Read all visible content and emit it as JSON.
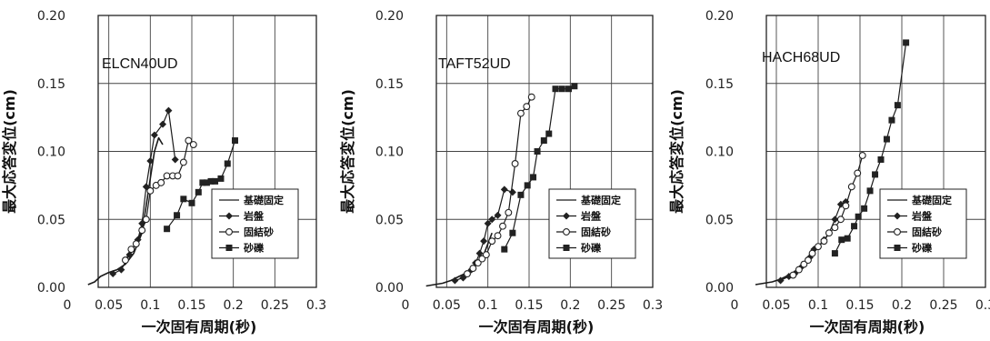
{
  "chart_data": [
    {
      "type": "line",
      "title": "ELCN40UD",
      "xlabel": "一次固有周期(秒)",
      "ylabel": "最大応答変位(cm)",
      "xlim": [
        0,
        0.3
      ],
      "ylim": [
        0,
        0.2
      ],
      "xticks": [
        "0",
        "0.05",
        "0.1",
        "0.15",
        "0.2",
        "0.25",
        "0.3"
      ],
      "yticks": [
        "0.00",
        "0.05",
        "0.10",
        "0.15",
        "0.20"
      ],
      "grid": true,
      "legend_position": "lower-right",
      "series": [
        {
          "name": "基礎固定",
          "marker": "none",
          "x": [
            0.025,
            0.033,
            0.04,
            0.05,
            0.06,
            0.07,
            0.08,
            0.09,
            0.095,
            0.1,
            0.105,
            0.11,
            0.115
          ],
          "y": [
            0.002,
            0.004,
            0.008,
            0.011,
            0.013,
            0.017,
            0.025,
            0.04,
            0.06,
            0.08,
            0.1,
            0.11,
            0.105
          ]
        },
        {
          "name": "岩盤",
          "marker": "diamond",
          "x": [
            0.055,
            0.065,
            0.075,
            0.085,
            0.09,
            0.095,
            0.1,
            0.105,
            0.115,
            0.122,
            0.13
          ],
          "y": [
            0.01,
            0.013,
            0.024,
            0.035,
            0.047,
            0.074,
            0.093,
            0.112,
            0.12,
            0.13,
            0.094
          ]
        },
        {
          "name": "固結砂",
          "marker": "circle",
          "x": [
            0.07,
            0.077,
            0.083,
            0.09,
            0.095,
            0.1,
            0.107,
            0.113,
            0.12,
            0.127,
            0.133,
            0.14,
            0.146,
            0.152
          ],
          "y": [
            0.02,
            0.028,
            0.032,
            0.042,
            0.05,
            0.071,
            0.075,
            0.077,
            0.082,
            0.082,
            0.082,
            0.092,
            0.108,
            0.105
          ]
        },
        {
          "name": "砂礫",
          "marker": "square",
          "x": [
            0.12,
            0.132,
            0.14,
            0.15,
            0.158,
            0.163,
            0.168,
            0.173,
            0.178,
            0.185,
            0.193,
            0.202
          ],
          "y": [
            0.043,
            0.053,
            0.065,
            0.062,
            0.07,
            0.077,
            0.077,
            0.078,
            0.078,
            0.08,
            0.091,
            0.108
          ]
        }
      ]
    },
    {
      "type": "line",
      "title": "TAFT52UD",
      "xlabel": "一次固有周期(秒)",
      "ylabel": "最大応答変位(cm)",
      "xlim": [
        0,
        0.3
      ],
      "ylim": [
        0,
        0.2
      ],
      "xticks": [
        "0",
        "0.05",
        "0.1",
        "0.15",
        "0.2",
        "0.25",
        "0.3"
      ],
      "yticks": [
        "0.00",
        "0.05",
        "0.10",
        "0.15",
        "0.20"
      ],
      "grid": true,
      "legend_position": "lower-right",
      "series": [
        {
          "name": "基礎固定",
          "marker": "none",
          "x": [
            0.025,
            0.035,
            0.045,
            0.055,
            0.065,
            0.075,
            0.085,
            0.095,
            0.105
          ],
          "y": [
            0.001,
            0.002,
            0.003,
            0.005,
            0.008,
            0.011,
            0.016,
            0.024,
            0.04
          ]
        },
        {
          "name": "岩盤",
          "marker": "diamond",
          "x": [
            0.06,
            0.07,
            0.075,
            0.08,
            0.085,
            0.09,
            0.095,
            0.1,
            0.105,
            0.112,
            0.12,
            0.13
          ],
          "y": [
            0.005,
            0.007,
            0.01,
            0.013,
            0.018,
            0.025,
            0.034,
            0.047,
            0.05,
            0.053,
            0.072,
            0.07
          ]
        },
        {
          "name": "固結砂",
          "marker": "circle",
          "x": [
            0.075,
            0.082,
            0.088,
            0.093,
            0.098,
            0.105,
            0.112,
            0.118,
            0.125,
            0.133,
            0.14,
            0.147,
            0.153
          ],
          "y": [
            0.01,
            0.014,
            0.018,
            0.021,
            0.024,
            0.034,
            0.038,
            0.045,
            0.055,
            0.091,
            0.128,
            0.133,
            0.14
          ]
        },
        {
          "name": "砂礫",
          "marker": "square",
          "x": [
            0.12,
            0.13,
            0.14,
            0.148,
            0.155,
            0.16,
            0.168,
            0.174,
            0.182,
            0.19,
            0.198,
            0.205
          ],
          "y": [
            0.028,
            0.04,
            0.068,
            0.075,
            0.081,
            0.1,
            0.108,
            0.113,
            0.146,
            0.146,
            0.146,
            0.148
          ]
        }
      ]
    },
    {
      "type": "line",
      "title": "HACH68UD",
      "xlabel": "一次固有周期(秒)",
      "ylabel": "最大応答変位(cm)",
      "xlim": [
        0,
        0.3
      ],
      "ylim": [
        0,
        0.2
      ],
      "xticks": [
        "0",
        "0.05",
        "0.1",
        "0.15",
        "0.2",
        "0.25",
        "0.3"
      ],
      "yticks": [
        "0.00",
        "0.05",
        "0.10",
        "0.15",
        "0.20"
      ],
      "grid": true,
      "legend_position": "lower-right",
      "series": [
        {
          "name": "基礎固定",
          "marker": "none",
          "x": [
            0.025,
            0.035,
            0.045,
            0.055,
            0.065,
            0.075
          ],
          "y": [
            0.002,
            0.003,
            0.004,
            0.006,
            0.009,
            0.011
          ]
        },
        {
          "name": "岩盤",
          "marker": "diamond",
          "x": [
            0.055,
            0.065,
            0.072,
            0.08,
            0.09,
            0.095,
            0.1,
            0.107,
            0.113,
            0.12,
            0.127,
            0.133
          ],
          "y": [
            0.005,
            0.008,
            0.01,
            0.015,
            0.022,
            0.028,
            0.03,
            0.035,
            0.04,
            0.05,
            0.061,
            0.063
          ]
        },
        {
          "name": "固結砂",
          "marker": "circle",
          "x": [
            0.07,
            0.077,
            0.083,
            0.088,
            0.093,
            0.1,
            0.107,
            0.113,
            0.12,
            0.127,
            0.133,
            0.14,
            0.147,
            0.153
          ],
          "y": [
            0.009,
            0.013,
            0.017,
            0.02,
            0.025,
            0.03,
            0.034,
            0.04,
            0.044,
            0.05,
            0.06,
            0.074,
            0.084,
            0.097
          ]
        },
        {
          "name": "砂礫",
          "marker": "square",
          "x": [
            0.12,
            0.128,
            0.135,
            0.143,
            0.148,
            0.155,
            0.162,
            0.168,
            0.175,
            0.182,
            0.188,
            0.195,
            0.205
          ],
          "y": [
            0.025,
            0.035,
            0.036,
            0.045,
            0.052,
            0.058,
            0.071,
            0.083,
            0.094,
            0.109,
            0.123,
            0.134,
            0.18
          ]
        }
      ]
    }
  ]
}
